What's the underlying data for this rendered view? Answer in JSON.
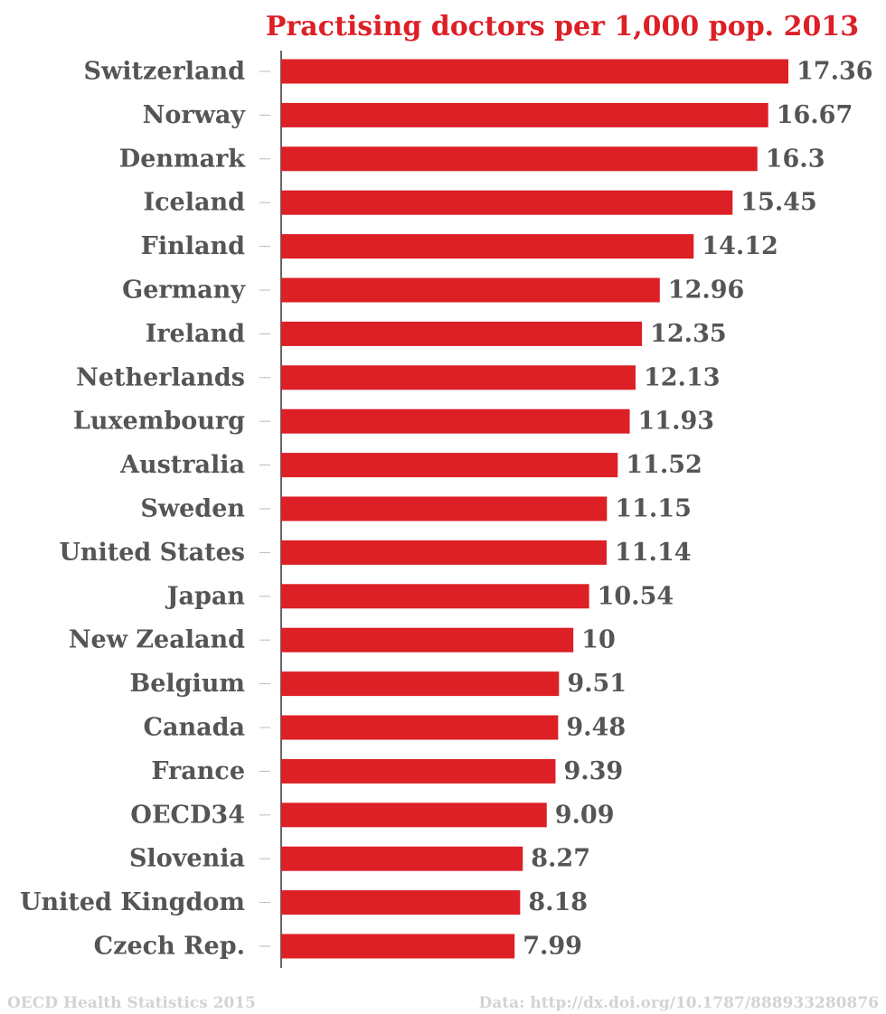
{
  "chart_data": {
    "type": "bar",
    "orientation": "horizontal",
    "title": "Practising doctors per 1,000 pop. 2013",
    "xlabel": "",
    "ylabel": "",
    "xlim": [
      0,
      18
    ],
    "grid": false,
    "legend": "none",
    "categories": [
      "Switzerland",
      "Norway",
      "Denmark",
      "Iceland",
      "Finland",
      "Germany",
      "Ireland",
      "Netherlands",
      "Luxembourg",
      "Australia",
      "Sweden",
      "United States",
      "Japan",
      "New Zealand",
      "Belgium",
      "Canada",
      "France",
      "OECD34",
      "Slovenia",
      "United Kingdom",
      "Czech Rep."
    ],
    "values": [
      17.36,
      16.67,
      16.3,
      15.45,
      14.12,
      12.96,
      12.35,
      12.13,
      11.93,
      11.52,
      11.15,
      11.14,
      10.54,
      10,
      9.51,
      9.48,
      9.39,
      9.09,
      8.27,
      8.18,
      7.99
    ],
    "value_labels": [
      "17.36",
      "16.67",
      "16.3",
      "15.45",
      "14.12",
      "12.96",
      "12.35",
      "12.13",
      "11.93",
      "11.52",
      "11.15",
      "11.14",
      "10.54",
      "10",
      "9.51",
      "9.48",
      "9.39",
      "9.09",
      "8.27",
      "8.18",
      "7.99"
    ],
    "colors": {
      "bar": "#dd1f26",
      "title": "#dd1f26",
      "label": "#555555",
      "axis": "#333333",
      "tick": "#bbbbbb",
      "footer": "#d3d3d3"
    }
  },
  "footer": {
    "source": "OECD Health Statistics 2015",
    "data_link": "Data: http://dx.doi.org/10.1787/888933280876"
  }
}
